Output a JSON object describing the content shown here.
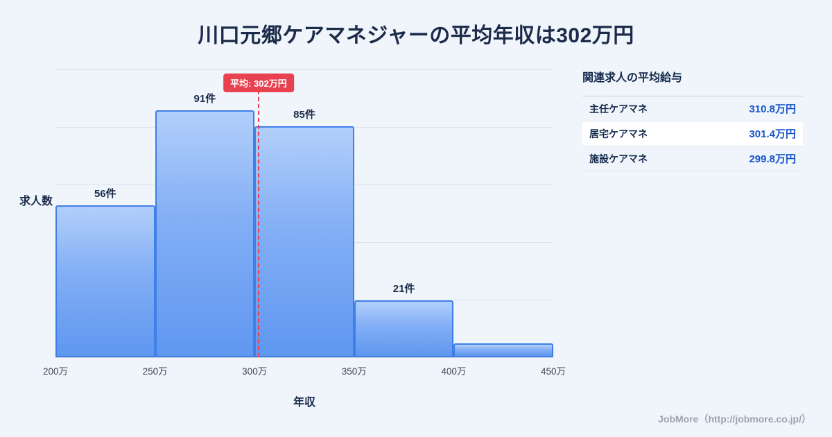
{
  "title": "川口元郷ケアマネジャーの平均年収は302万円",
  "chart_data": {
    "type": "bar",
    "subtype": "histogram",
    "title": "川口元郷ケアマネジャーの平均年収は302万円",
    "xlabel": "年収",
    "ylabel": "求人数",
    "x_range": [
      200,
      450
    ],
    "x_ticks": [
      "200万",
      "250万",
      "300万",
      "350万",
      "400万",
      "450万"
    ],
    "ylim": [
      0,
      106
    ],
    "grid": true,
    "bins": [
      {
        "range": "200万-250万",
        "count": 56,
        "label": "56件"
      },
      {
        "range": "250万-300万",
        "count": 91,
        "label": "91件"
      },
      {
        "range": "300万-350万",
        "count": 85,
        "label": "85件"
      },
      {
        "range": "350万-400万",
        "count": 21,
        "label": "21件"
      },
      {
        "range": "400万-450万",
        "count": 5,
        "label": ""
      }
    ],
    "average_line": {
      "value": 302,
      "label": "平均: 302万円",
      "color": "#e8414f"
    }
  },
  "side_panel": {
    "heading": "関連求人の平均給与",
    "rows": [
      {
        "label": "主任ケアマネ",
        "value": "310.8万円"
      },
      {
        "label": "居宅ケアマネ",
        "value": "301.4万円"
      },
      {
        "label": "施設ケアマネ",
        "value": "299.8万円"
      }
    ]
  },
  "footer": {
    "credit": "JobMore（http://jobmore.co.jp/）"
  },
  "colors": {
    "background": "#f0f5fb",
    "bar_fill_top": "#b2cffa",
    "bar_fill_bottom": "#5f97f0",
    "bar_border": "#3f7fe8",
    "average_red": "#e8414f",
    "title_navy": "#1c2b4a",
    "value_blue": "#1553c9",
    "gridline": "#d9e0ea",
    "footer_gray": "#9aa4b2"
  }
}
